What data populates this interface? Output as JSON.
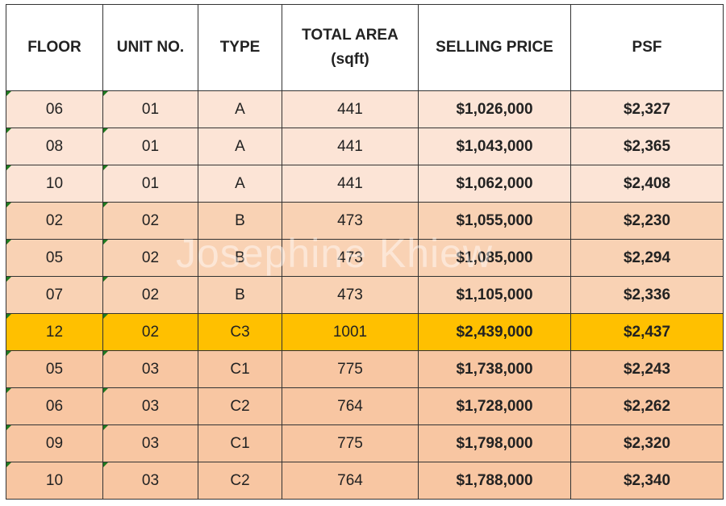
{
  "headers": {
    "floor": "FLOOR",
    "unit": "UNIT NO.",
    "type": "TYPE",
    "area_line1": "TOTAL AREA",
    "area_line2": "(sqft)",
    "price": "SELLING PRICE",
    "psf": "PSF"
  },
  "rows": [
    {
      "floor": "06",
      "unit": "01",
      "type": "A",
      "area": "441",
      "price": "$1,026,000",
      "psf": "$2,327"
    },
    {
      "floor": "08",
      "unit": "01",
      "type": "A",
      "area": "441",
      "price": "$1,043,000",
      "psf": "$2,365"
    },
    {
      "floor": "10",
      "unit": "01",
      "type": "A",
      "area": "441",
      "price": "$1,062,000",
      "psf": "$2,408"
    },
    {
      "floor": "02",
      "unit": "02",
      "type": "B",
      "area": "473",
      "price": "$1,055,000",
      "psf": "$2,230"
    },
    {
      "floor": "05",
      "unit": "02",
      "type": "B",
      "area": "473",
      "price": "$1,085,000",
      "psf": "$2,294"
    },
    {
      "floor": "07",
      "unit": "02",
      "type": "B",
      "area": "473",
      "price": "$1,105,000",
      "psf": "$2,336"
    },
    {
      "floor": "12",
      "unit": "02",
      "type": "C3",
      "area": "1001",
      "price": "$2,439,000",
      "psf": "$2,437"
    },
    {
      "floor": "05",
      "unit": "03",
      "type": "C1",
      "area": "775",
      "price": "$1,738,000",
      "psf": "$2,243"
    },
    {
      "floor": "06",
      "unit": "03",
      "type": "C2",
      "area": "764",
      "price": "$1,728,000",
      "psf": "$2,262"
    },
    {
      "floor": "09",
      "unit": "03",
      "type": "C1",
      "area": "775",
      "price": "$1,798,000",
      "psf": "$2,320"
    },
    {
      "floor": "10",
      "unit": "03",
      "type": "C2",
      "area": "764",
      "price": "$1,788,000",
      "psf": "$2,340"
    }
  ],
  "row_styles": [
    "a",
    "a",
    "a",
    "b",
    "b",
    "b",
    "hl",
    "c",
    "c",
    "c",
    "c"
  ],
  "colors": {
    "type_a": "#fce4d6",
    "type_b": "#f9d2b4",
    "type_c": "#f8c6a2",
    "highlight": "#ffc000"
  },
  "watermark": "Josephine Khiew"
}
